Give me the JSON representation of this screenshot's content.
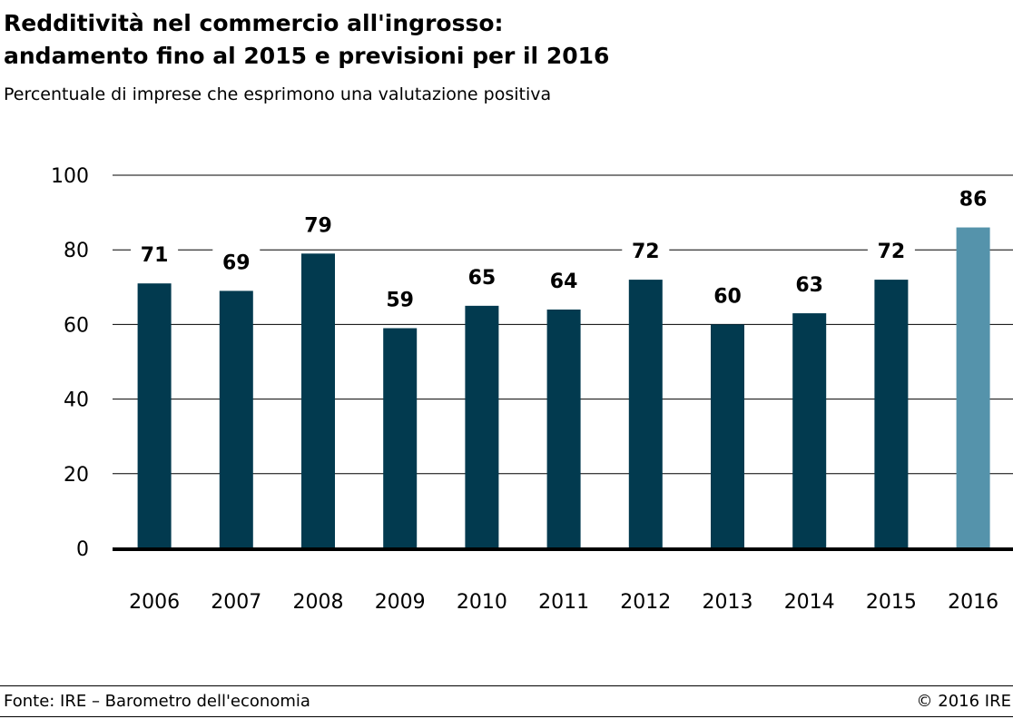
{
  "header": {
    "title_line1": "Redditività nel commercio all'ingrosso:",
    "title_line2": "andamento fino al 2015 e previsioni per il 2016",
    "subtitle": "Percentuale di imprese che esprimono una valutazione positiva"
  },
  "footer": {
    "source": "Fonte: IRE – Barometro dell'economia",
    "copyright": "© 2016 IRE"
  },
  "colors": {
    "actual": "#023a4f",
    "forecast": "#5593ab",
    "grid": "#000000"
  },
  "chart_data": {
    "type": "bar",
    "title": "Redditività nel commercio all'ingrosso: andamento fino al 2015 e previsioni per il 2016",
    "subtitle": "Percentuale di imprese che esprimono una valutazione positiva",
    "categories": [
      "2006",
      "2007",
      "2008",
      "2009",
      "2010",
      "2011",
      "2012",
      "2013",
      "2014",
      "2015",
      "2016"
    ],
    "values": [
      71,
      69,
      79,
      59,
      65,
      64,
      72,
      60,
      63,
      72,
      86
    ],
    "data_labels": [
      "71",
      "69",
      "79",
      "59",
      "65",
      "64",
      "72",
      "60",
      "63",
      "72",
      "86"
    ],
    "forecast_flags": [
      false,
      false,
      false,
      false,
      false,
      false,
      false,
      false,
      false,
      false,
      true
    ],
    "ylim": [
      0,
      100
    ],
    "yticks": [
      0,
      20,
      40,
      60,
      80,
      100
    ],
    "ytick_labels": [
      "0",
      "20",
      "40",
      "60",
      "80",
      "100"
    ],
    "xlabel": "",
    "ylabel": "",
    "grid": true
  }
}
